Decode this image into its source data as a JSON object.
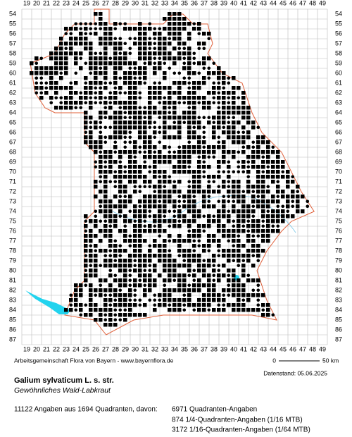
{
  "map": {
    "x_labels": [
      19,
      20,
      21,
      22,
      23,
      24,
      25,
      26,
      27,
      28,
      29,
      30,
      31,
      32,
      33,
      34,
      35,
      36,
      37,
      38,
      39,
      40,
      41,
      42,
      43,
      44,
      45,
      46,
      47,
      48,
      49
    ],
    "y_labels": [
      54,
      55,
      56,
      57,
      58,
      59,
      60,
      61,
      62,
      63,
      64,
      65,
      66,
      67,
      68,
      69,
      70,
      71,
      72,
      73,
      74,
      75,
      76,
      77,
      78,
      79,
      80,
      81,
      82,
      83,
      84,
      85,
      86,
      87
    ],
    "credit": "Arbeitsgemeinschaft Flora von Bayern - www.bayernflora.de",
    "scale_start": "0",
    "scale_end": "50 km",
    "date": "Datenstand: 05.06.2025"
  },
  "species": {
    "name": "Galium sylvaticum L. s. str.",
    "common_name": "Gewöhnliches Wald-Labkraut"
  },
  "stats": {
    "summary": "11122 Angaben aus 1694 Quadranten, davon:",
    "lines": [
      "6971 Quadranten-Angaben",
      "874 1/4-Quadranten-Angaben (1/16 MTB)",
      "3172 1/16-Quadranten-Angaben (1/64 MTB)"
    ]
  }
}
